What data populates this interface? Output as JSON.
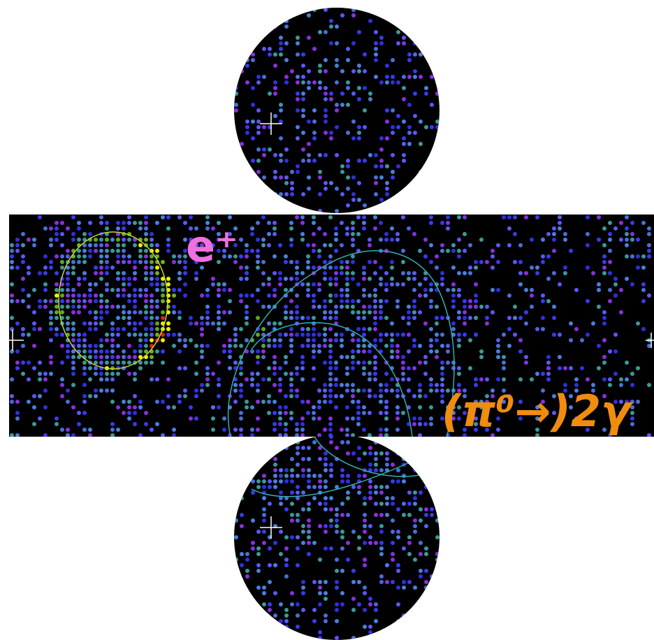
{
  "labels": {
    "positron": "e⁺",
    "photons": "(π⁰→)2γ"
  }
}
